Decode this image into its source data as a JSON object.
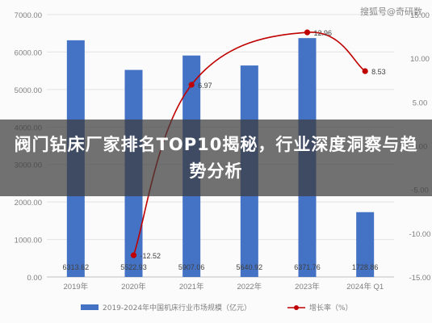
{
  "watermark": "搜狐号@奇研数",
  "banner": {
    "title": "阀门钻床厂家排名TOP10揭秘，行业深度洞察与趋势分析"
  },
  "colors": {
    "bar": "#4472c4",
    "line": "#c00000",
    "grid": "#e3e3e3",
    "axis_text": "#7f7f7f",
    "banner_overlay": "rgba(60,60,60,0.72)"
  },
  "chart_data": {
    "type": "bar",
    "categories": [
      "2019年",
      "2020年",
      "2021年",
      "2022年",
      "2023年",
      "2024年 Q1"
    ],
    "series": [
      {
        "name": "2019-2024年中国机床行业市场规模（亿元）",
        "type": "bar",
        "axis": "left",
        "values": [
          6313.62,
          5522.93,
          5907.06,
          5640.92,
          6371.76,
          1728.86
        ],
        "labels": [
          "6313.62",
          "5522.93",
          "5907.06",
          "5640.92",
          "6371.76",
          "1728.86"
        ]
      },
      {
        "name": "增长率（%）",
        "type": "line",
        "axis": "right",
        "values": [
          null,
          -12.52,
          6.97,
          null,
          12.96,
          8.53
        ],
        "labels": [
          "",
          "-12.52",
          "6.97",
          "",
          "12.96",
          "8.53"
        ]
      }
    ],
    "y_left": {
      "min": 0,
      "max": 7000,
      "ticks": [
        "0.00",
        "1000.00",
        "2000.00",
        "3000.00",
        "4000.00",
        "5000.00",
        "6000.00",
        "7000.00"
      ]
    },
    "y_right": {
      "min": -15,
      "max": 15,
      "ticks": [
        "-15.00",
        "-10.00",
        "-5.00",
        "0.00",
        "5.00",
        "10.00",
        "15.00"
      ]
    },
    "grid": true,
    "legend_position": "bottom"
  }
}
